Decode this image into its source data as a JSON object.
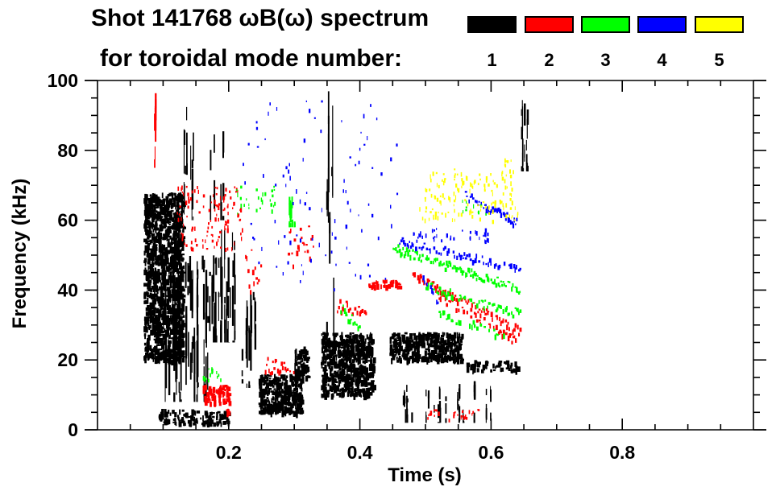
{
  "header": {
    "title_line1": "Shot 141768 ωB(ω) spectrum",
    "title_line2": "for toroidal mode number:"
  },
  "legend": [
    {
      "label": "1",
      "color": "#000000"
    },
    {
      "label": "2",
      "color": "#ff0000"
    },
    {
      "label": "3",
      "color": "#00ff00"
    },
    {
      "label": "4",
      "color": "#0000ff"
    },
    {
      "label": "5",
      "color": "#ffff00"
    }
  ],
  "chart_data": {
    "type": "heatmap",
    "title": "Shot 141768 ωB(ω) spectrum for toroidal mode number:",
    "xlabel": "Time (s)",
    "ylabel": "Frequency (kHz)",
    "xlim": [
      0,
      1.0
    ],
    "ylim": [
      0,
      100
    ],
    "x_ticks": [
      {
        "value": 0.2,
        "label": "0.2"
      },
      {
        "value": 0.4,
        "label": "0.4"
      },
      {
        "value": 0.6,
        "label": "0.6"
      },
      {
        "value": 0.8,
        "label": "0.8"
      }
    ],
    "y_ticks": [
      {
        "value": 0,
        "label": "0"
      },
      {
        "value": 20,
        "label": "20"
      },
      {
        "value": 40,
        "label": "40"
      },
      {
        "value": 60,
        "label": "60"
      },
      {
        "value": 80,
        "label": "80"
      },
      {
        "value": 100,
        "label": "100"
      }
    ],
    "x_minor_step": 0.05,
    "y_minor_step": 5,
    "grid": false,
    "legend_position": "top-right",
    "series": [
      {
        "name": "n=1",
        "color": "#000000",
        "features": [
          {
            "t": [
              0.07,
              0.13
            ],
            "f": [
              20,
              68
            ],
            "kind": "blob",
            "density": 0.75
          },
          {
            "t": [
              0.1,
              0.17
            ],
            "f": [
              8,
              50
            ],
            "kind": "streaks",
            "density": 0.5
          },
          {
            "t": [
              0.17,
              0.21
            ],
            "f": [
              25,
              58
            ],
            "kind": "streaks",
            "density": 0.5
          },
          {
            "t": [
              0.09,
              0.2
            ],
            "f": [
              2,
              6
            ],
            "kind": "blob",
            "density": 0.45
          },
          {
            "t": [
              0.12,
              0.2
            ],
            "f": [
              60,
              95
            ],
            "kind": "streaks",
            "density": 0.12
          },
          {
            "t": [
              0.245,
              0.31
            ],
            "f": [
              5,
              16
            ],
            "kind": "blob",
            "density": 0.8
          },
          {
            "t": [
              0.3,
              0.32
            ],
            "f": [
              15,
              24
            ],
            "kind": "blob",
            "density": 0.75
          },
          {
            "t": [
              0.34,
              0.42
            ],
            "f": [
              10,
              28
            ],
            "kind": "blob",
            "density": 0.75
          },
          {
            "t": [
              0.345,
              0.36
            ],
            "f": [
              20,
              97
            ],
            "kind": "streaks",
            "density": 0.35
          },
          {
            "t": [
              0.445,
              0.555
            ],
            "f": [
              20,
              28
            ],
            "kind": "blob",
            "density": 0.75
          },
          {
            "t": [
              0.56,
              0.64
            ],
            "f": [
              17,
              20
            ],
            "kind": "blob",
            "density": 0.4
          },
          {
            "t": [
              0.645,
              0.655
            ],
            "f": [
              74,
              95
            ],
            "kind": "streaks",
            "density": 0.6
          },
          {
            "t": [
              0.44,
              0.6
            ],
            "f": [
              2,
              14
            ],
            "kind": "streaks",
            "density": 0.12
          },
          {
            "t": [
              0.2,
              0.24
            ],
            "f": [
              12,
              40
            ],
            "kind": "streaks",
            "density": 0.15
          }
        ]
      },
      {
        "name": "n=2",
        "color": "#ff0000",
        "features": [
          {
            "t": [
              0.085,
              0.09
            ],
            "f": [
              75,
              98
            ],
            "kind": "streaks",
            "density": 0.3
          },
          {
            "t": [
              0.12,
              0.22
            ],
            "f": [
              52,
              70
            ],
            "kind": "speckle",
            "density": 0.18
          },
          {
            "t": [
              0.16,
              0.2
            ],
            "f": [
              8,
              13
            ],
            "kind": "blob",
            "density": 0.55
          },
          {
            "t": [
              0.195,
              0.2
            ],
            "f": [
              5,
              7
            ],
            "kind": "blob",
            "density": 0.7
          },
          {
            "t": [
              0.225,
              0.25
            ],
            "f": [
              40,
              52
            ],
            "kind": "chirp",
            "f_end": [
              38,
              50
            ],
            "density": 0.6
          },
          {
            "t": [
              0.29,
              0.33
            ],
            "f": [
              45,
              60
            ],
            "kind": "chirp",
            "f_end": [
              50,
              60
            ],
            "density": 0.6
          },
          {
            "t": [
              0.255,
              0.3
            ],
            "f": [
              16,
              22
            ],
            "kind": "chirp",
            "f_end": [
              16,
              18
            ],
            "density": 0.5
          },
          {
            "t": [
              0.365,
              0.41
            ],
            "f": [
              33,
              38
            ],
            "kind": "chirp",
            "f_end": [
              33,
              34
            ],
            "density": 0.55
          },
          {
            "t": [
              0.41,
              0.46
            ],
            "f": [
              41,
              43
            ],
            "kind": "blob",
            "density": 0.6
          },
          {
            "t": [
              0.48,
              0.645
            ],
            "f": [
              44,
              28
            ],
            "kind": "band",
            "density": 0.55
          },
          {
            "t": [
              0.52,
              0.64
            ],
            "f": [
              38,
              25
            ],
            "kind": "band",
            "density": 0.35
          },
          {
            "t": [
              0.5,
              0.58
            ],
            "f": [
              3,
              6
            ],
            "kind": "speckle",
            "density": 0.3
          }
        ]
      },
      {
        "name": "n=3",
        "color": "#00ff00",
        "features": [
          {
            "t": [
              0.21,
              0.27
            ],
            "f": [
              62,
              70
            ],
            "kind": "speckle",
            "density": 0.15
          },
          {
            "t": [
              0.29,
              0.3
            ],
            "f": [
              58,
              68
            ],
            "kind": "streaks",
            "density": 0.4
          },
          {
            "t": [
              0.37,
              0.4
            ],
            "f": [
              33,
              37
            ],
            "kind": "chirp",
            "f_end": [
              28,
              30
            ],
            "density": 0.6
          },
          {
            "t": [
              0.45,
              0.645
            ],
            "f": [
              52,
              40
            ],
            "kind": "band",
            "density": 0.55
          },
          {
            "t": [
              0.5,
              0.645
            ],
            "f": [
              41,
              33
            ],
            "kind": "band",
            "density": 0.45
          },
          {
            "t": [
              0.52,
              0.62
            ],
            "f": [
              33,
              27
            ],
            "kind": "band",
            "density": 0.3
          },
          {
            "t": [
              0.16,
              0.19
            ],
            "f": [
              14,
              18
            ],
            "kind": "speckle",
            "density": 0.3
          },
          {
            "t": [
              0.55,
              0.62
            ],
            "f": [
              62,
              66
            ],
            "kind": "speckle",
            "density": 0.1
          }
        ]
      },
      {
        "name": "n=4",
        "color": "#0000ff",
        "features": [
          {
            "t": [
              0.56,
              0.64
            ],
            "f": [
              67,
              59
            ],
            "kind": "band",
            "density": 0.55
          },
          {
            "t": [
              0.46,
              0.645
            ],
            "f": [
              54,
              46
            ],
            "kind": "band",
            "density": 0.3
          },
          {
            "t": [
              0.48,
              0.6
            ],
            "f": [
              58,
              54
            ],
            "kind": "speckle",
            "density": 0.2
          },
          {
            "t": [
              0.49,
              0.52
            ],
            "f": [
              44,
              37
            ],
            "kind": "band",
            "density": 0.35
          },
          {
            "t": [
              0.22,
              0.46
            ],
            "f": [
              40,
              95
            ],
            "kind": "speckle",
            "density": 0.02
          }
        ]
      },
      {
        "name": "n=5",
        "color": "#ffff00",
        "features": [
          {
            "t": [
              0.49,
              0.64
            ],
            "f": [
              75,
              60
            ],
            "kind": "speckle",
            "density": 0.18
          },
          {
            "t": [
              0.62,
              0.645
            ],
            "f": [
              76,
              78
            ],
            "kind": "speckle",
            "density": 0.2
          }
        ]
      }
    ]
  }
}
